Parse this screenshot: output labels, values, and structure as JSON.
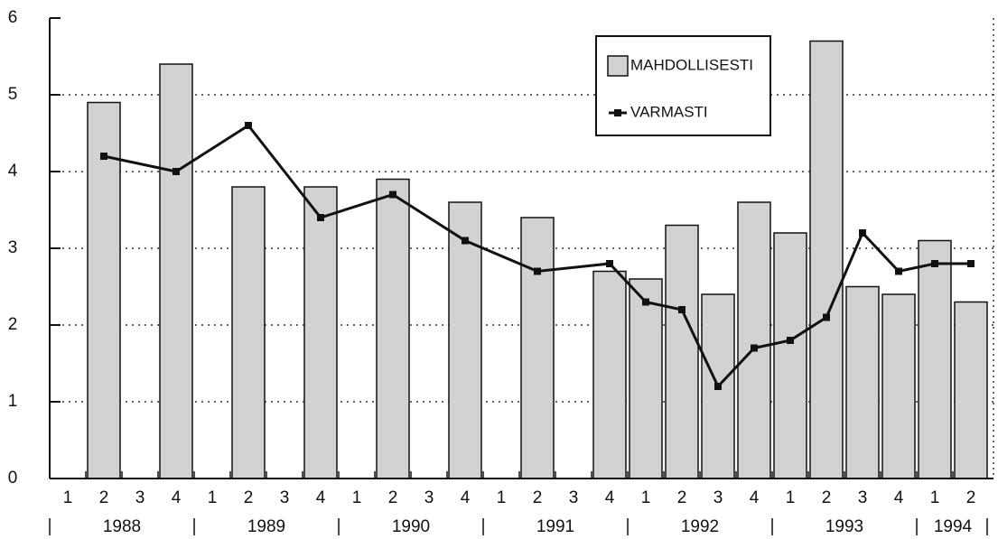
{
  "chart_data": {
    "type": "bar",
    "categories": [
      "1",
      "2",
      "3",
      "4",
      "1",
      "2",
      "3",
      "4",
      "1",
      "2",
      "3",
      "4",
      "1",
      "2",
      "3",
      "4",
      "1",
      "2",
      "3",
      "4",
      "1",
      "2",
      "3",
      "4",
      "1",
      "2"
    ],
    "years": [
      "1988",
      "1989",
      "1990",
      "1991",
      "1992",
      "1993",
      "1994"
    ],
    "series": [
      {
        "name": "MAHDOLLISESTI",
        "type": "bar",
        "color": "#d2d2d2",
        "values": [
          null,
          4.9,
          null,
          5.4,
          null,
          3.8,
          null,
          3.8,
          null,
          3.9,
          null,
          3.6,
          null,
          3.4,
          null,
          2.7,
          2.6,
          3.3,
          2.4,
          3.6,
          3.2,
          5.7,
          2.5,
          2.4,
          3.1,
          2.3
        ]
      },
      {
        "name": "VARMASTI",
        "type": "line",
        "color": "#111111",
        "connect_gaps": true,
        "values": [
          null,
          4.2,
          null,
          4.0,
          null,
          4.6,
          null,
          3.4,
          null,
          3.7,
          null,
          3.1,
          null,
          2.7,
          null,
          2.8,
          2.3,
          2.2,
          1.2,
          1.7,
          1.8,
          2.1,
          3.2,
          2.7,
          2.8,
          2.8
        ]
      }
    ],
    "ylim": [
      0,
      6
    ],
    "yticks": [
      0,
      1,
      2,
      3,
      4,
      5,
      6
    ],
    "grid": true,
    "legend": "top-right"
  }
}
